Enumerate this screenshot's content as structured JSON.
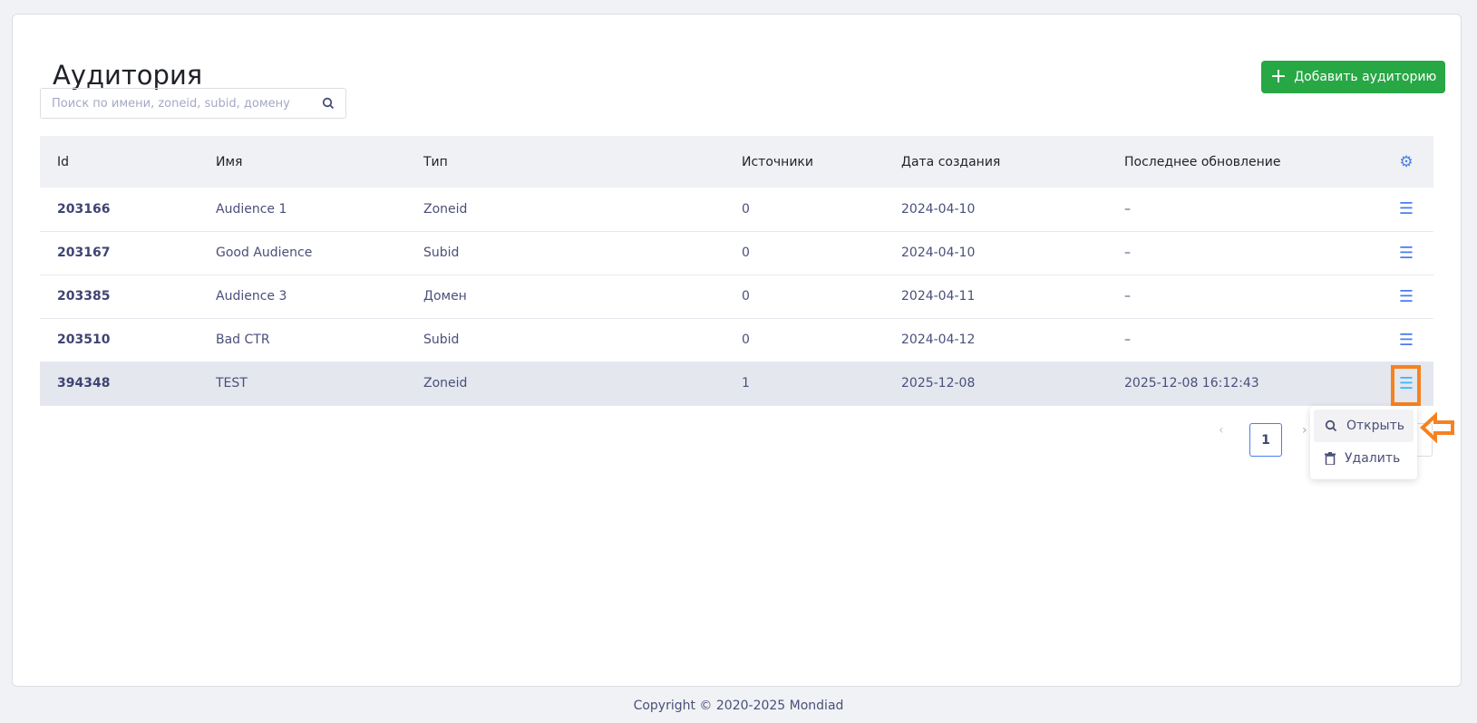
{
  "page": {
    "title": "Аудитория",
    "add_button": "Добавить аудиторию",
    "search_placeholder": "Поиск по имени, zoneid, subid, домену"
  },
  "table": {
    "headers": [
      "Id",
      "Имя",
      "Тип",
      "Источники",
      "Дата создания",
      "Последнее обновление"
    ],
    "rows": [
      {
        "id": "203166",
        "name": "Audience 1",
        "type": "Zoneid",
        "sources": "0",
        "created": "2024-04-10",
        "updated": "–"
      },
      {
        "id": "203167",
        "name": "Good Audience",
        "type": "Subid",
        "sources": "0",
        "created": "2024-04-10",
        "updated": "–"
      },
      {
        "id": "203385",
        "name": "Audience 3",
        "type": "Домен",
        "sources": "0",
        "created": "2024-04-11",
        "updated": "–"
      },
      {
        "id": "203510",
        "name": "Bad CTR",
        "type": "Subid",
        "sources": "0",
        "created": "2024-04-12",
        "updated": "–"
      },
      {
        "id": "394348",
        "name": "TEST",
        "type": "Zoneid",
        "sources": "1",
        "created": "2025-12-08",
        "updated": "2025-12-08 16:12:43"
      }
    ]
  },
  "pagination": {
    "current": "1",
    "prev": "‹",
    "next": "›"
  },
  "menu": {
    "open": "Открыть",
    "delete": "Удалить"
  },
  "footer": "Copyright © 2020-2025 Mondiad",
  "colors": {
    "accent": "#4a7cf0",
    "add_button": "#28a745",
    "highlight": "#f58220"
  }
}
